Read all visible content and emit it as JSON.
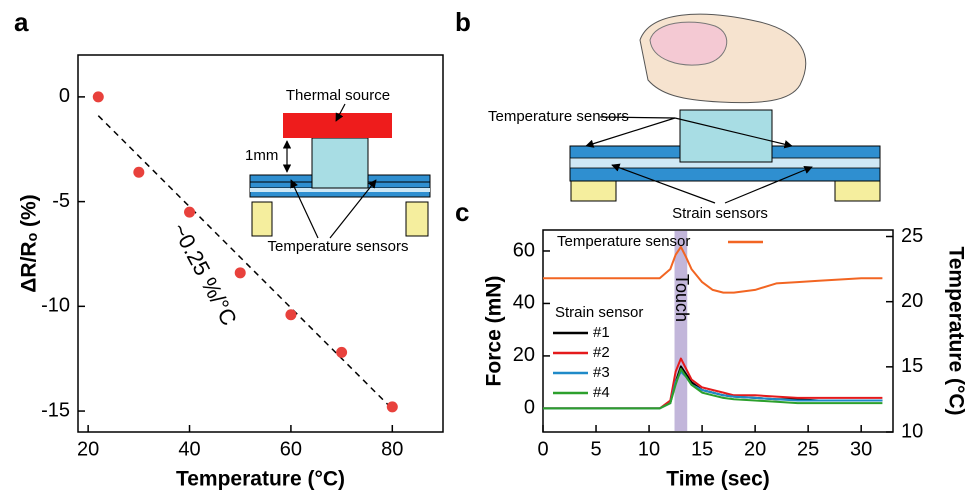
{
  "panels": [
    "a",
    "b",
    "c"
  ],
  "chart_data": [
    {
      "type": "scatter",
      "ylabel": "ΔR/Rₒ (%)",
      "xlabel": "Temperature (°C)",
      "annotation": "~0.25 %/°C",
      "x": [
        22,
        30,
        40,
        50,
        60,
        70,
        80
      ],
      "values": [
        0,
        -3.6,
        -5.5,
        -8.4,
        -10.4,
        -12.2,
        -14.8
      ],
      "color": "#e8413c",
      "fit": {
        "x": [
          22,
          80
        ],
        "values": [
          -0.9,
          -14.9
        ]
      },
      "xlim": [
        18,
        90
      ],
      "xticks": [
        20,
        40,
        60,
        80
      ],
      "ylim": [
        -16,
        2
      ],
      "yticks": [
        0,
        -5,
        -10,
        -15
      ]
    },
    {
      "type": "line",
      "ylabel": "Force (mN)",
      "xlabel": "Time (sec)",
      "y2label": "Temperature (°C)",
      "annotation": "Touch",
      "touch_span": [
        12.4,
        13.6
      ],
      "legend_title": "Strain sensor",
      "x": [
        0,
        1,
        2,
        3,
        4,
        5,
        6,
        7,
        8,
        9,
        10,
        11,
        12,
        12.5,
        13,
        13.5,
        14,
        15,
        16,
        17,
        18,
        20,
        22,
        24,
        26,
        28,
        30,
        32
      ],
      "series": [
        {
          "name": "Temperature sensor",
          "color": "#f26522",
          "axis": "y2",
          "values": [
            21.8,
            21.8,
            21.8,
            21.8,
            21.8,
            21.8,
            21.8,
            21.8,
            21.8,
            21.8,
            21.8,
            21.8,
            22.5,
            23.6,
            24.2,
            23.4,
            22.5,
            21.5,
            20.9,
            20.7,
            20.7,
            20.9,
            21.4,
            21.5,
            21.6,
            21.7,
            21.8,
            21.8
          ]
        },
        {
          "name": "#1",
          "color": "#000000",
          "values": [
            0,
            0,
            0,
            0,
            0,
            0,
            0,
            0,
            0,
            0,
            0,
            0,
            2,
            10,
            16,
            13,
            10,
            7,
            6,
            5,
            4.5,
            4,
            3.5,
            3.5,
            3,
            3,
            3,
            3
          ]
        },
        {
          "name": "#2",
          "color": "#e41a1c",
          "values": [
            0,
            0,
            0,
            0,
            0,
            0,
            0,
            0,
            0,
            0,
            0,
            0,
            3,
            14,
            19,
            15,
            11,
            8,
            7,
            6,
            5,
            5,
            4.5,
            4,
            4,
            4,
            4,
            4
          ]
        },
        {
          "name": "#3",
          "color": "#1f8ac8",
          "values": [
            0,
            0,
            0,
            0,
            0,
            0,
            0,
            0,
            0,
            0,
            0,
            0,
            2,
            10,
            14,
            12,
            9,
            7,
            6,
            5,
            4.5,
            4,
            3.5,
            3,
            3,
            3,
            3,
            3
          ]
        },
        {
          "name": "#4",
          "color": "#2ca02c",
          "values": [
            0,
            0,
            0,
            0,
            0,
            0,
            0,
            0,
            0,
            0,
            0,
            0,
            2,
            9,
            15,
            12,
            9,
            6,
            5,
            4,
            3.5,
            3,
            2.5,
            2,
            2,
            2,
            2,
            2
          ]
        }
      ],
      "xlim": [
        0,
        33
      ],
      "xticks": [
        0,
        5,
        10,
        15,
        20,
        25,
        30
      ],
      "ylim": [
        -9,
        68
      ],
      "yticks": [
        0,
        20,
        40,
        60
      ],
      "y2lim": [
        10,
        25.5
      ],
      "y2ticks": [
        10,
        15,
        20,
        25
      ]
    }
  ],
  "diagrams": {
    "a_inset": {
      "labels": [
        "Thermal source",
        "1mm",
        "Temperature sensors"
      ]
    },
    "b": {
      "labels": [
        "Temperature sensors",
        "Strain sensors"
      ]
    }
  }
}
